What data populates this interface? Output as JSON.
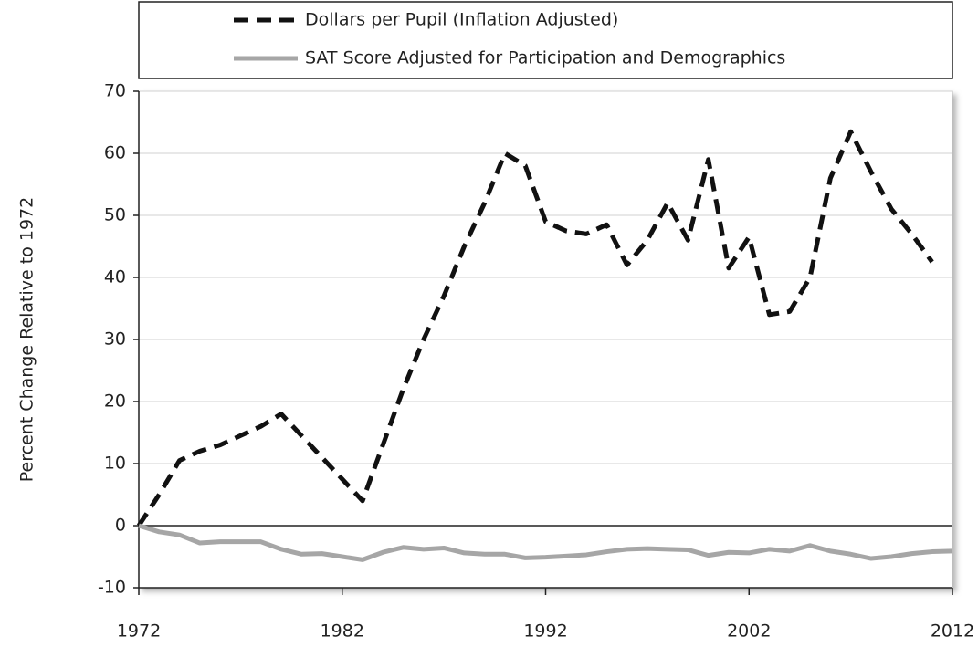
{
  "chart_data": {
    "type": "line",
    "y_label": "Percent Change Relative to 1972",
    "x": [
      1972,
      1973,
      1974,
      1975,
      1976,
      1977,
      1978,
      1979,
      1980,
      1981,
      1982,
      1983,
      1984,
      1985,
      1986,
      1987,
      1988,
      1989,
      1990,
      1991,
      1992,
      1993,
      1994,
      1995,
      1996,
      1997,
      1998,
      1999,
      2000,
      2001,
      2002,
      2003,
      2004,
      2005,
      2006,
      2007,
      2008,
      2009,
      2010,
      2011,
      2012
    ],
    "series": [
      {
        "name": "Dollars per Pupil (Inflation Adjusted)",
        "color": "#111111",
        "dashed": true,
        "values": [
          0,
          5,
          10.5,
          12,
          13,
          14.5,
          16,
          18,
          14.5,
          11,
          7.5,
          4,
          13,
          22,
          30,
          37,
          45,
          52,
          60,
          58,
          49,
          47.5,
          47,
          48.5,
          42,
          46,
          52,
          46,
          59,
          41.5,
          46.5,
          34,
          34.5,
          40,
          56,
          63.5,
          57,
          51,
          47,
          42.5,
          null
        ]
      },
      {
        "name": "SAT Score Adjusted for Participation and Demographics",
        "color": "#a6a6a6",
        "dashed": false,
        "values": [
          0,
          -1,
          -1.5,
          -2.8,
          -2.6,
          -2.6,
          -2.6,
          -3.8,
          -4.6,
          -4.5,
          -5,
          -5.5,
          -4.3,
          -3.5,
          -3.8,
          -3.6,
          -4.4,
          -4.6,
          -4.6,
          -5.2,
          -5.1,
          -4.9,
          -4.7,
          -4.2,
          -3.8,
          -3.7,
          -3.8,
          -3.9,
          -4.8,
          -4.3,
          -4.4,
          -3.8,
          -4.1,
          -3.2,
          -4.1,
          -4.6,
          -5.3,
          -5,
          -4.5,
          -4.2,
          -4.1
        ]
      }
    ],
    "xlim": [
      1972,
      2012
    ],
    "xticks": [
      1972,
      1982,
      1992,
      2002,
      2012
    ],
    "ylim": [
      -10,
      70
    ],
    "yticks": [
      -10,
      0,
      10,
      20,
      30,
      40,
      50,
      60,
      70
    ],
    "grid": true,
    "legend": "top"
  }
}
